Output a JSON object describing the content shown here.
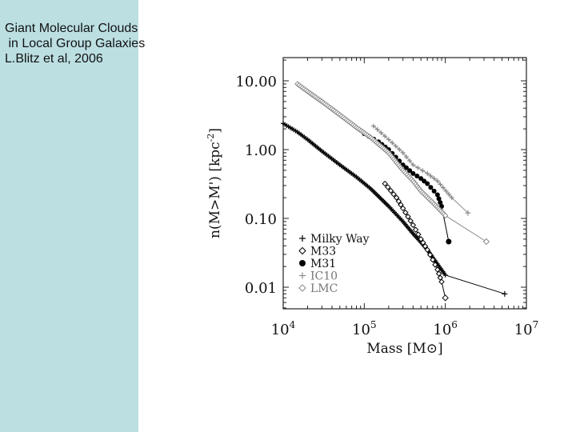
{
  "slide": {
    "title_line1": "Giant Molecular Clouds",
    "title_line2": " in Local Group Galaxies",
    "citation": "L.Blitz et al, 2006",
    "band_color": "#bcdfe2"
  },
  "chart_data": {
    "type": "line",
    "title": "",
    "xlabel": "Mass [M⊙]",
    "ylabel": "n(M>M') [kpc^-2]",
    "xscale": "log",
    "yscale": "log",
    "xlim": [
      10000,
      10000000
    ],
    "ylim": [
      0.005,
      15
    ],
    "x_ticks": [
      "10^4",
      "10^5",
      "10^6",
      "10^7"
    ],
    "y_ticks": [
      "10.00",
      "1.00",
      "0.10",
      "0.01"
    ],
    "grid": false,
    "legend_position": "lower-left inside",
    "series": [
      {
        "name": "Milky Way",
        "marker": "plus",
        "color": "#000000",
        "x": [
          10000,
          15000,
          20000,
          30000,
          50000,
          80000,
          120000,
          200000,
          300000,
          400000,
          500000,
          600000,
          700000,
          1000000,
          5400000
        ],
        "y": [
          2.4,
          1.8,
          1.4,
          0.95,
          0.6,
          0.4,
          0.27,
          0.15,
          0.09,
          0.06,
          0.045,
          0.035,
          0.027,
          0.015,
          0.008
        ]
      },
      {
        "name": "M33",
        "marker": "diamond-open",
        "color": "#000000",
        "x": [
          180000,
          250000,
          300000,
          400000,
          500000,
          600000,
          700000,
          800000,
          900000,
          1000000
        ],
        "y": [
          0.32,
          0.2,
          0.14,
          0.08,
          0.05,
          0.035,
          0.025,
          0.018,
          0.012,
          0.007
        ]
      },
      {
        "name": "M31",
        "marker": "circle-filled",
        "color": "#000000",
        "x": [
          100000,
          150000,
          200000,
          300000,
          400000,
          500000,
          600000,
          800000,
          900000,
          1100000
        ],
        "y": [
          1.7,
          1.3,
          1.0,
          0.6,
          0.45,
          0.38,
          0.32,
          0.22,
          0.15,
          0.046
        ]
      },
      {
        "name": "IC10",
        "marker": "plus",
        "color": "#8a8a8a",
        "x": [
          130000,
          200000,
          300000,
          400000,
          600000,
          800000,
          1200000,
          1900000
        ],
        "y": [
          2.2,
          1.4,
          0.9,
          0.6,
          0.45,
          0.35,
          0.2,
          0.12
        ]
      },
      {
        "name": "LMC",
        "marker": "diamond-open",
        "color": "#8a8a8a",
        "x": [
          15000,
          20000,
          30000,
          50000,
          80000,
          120000,
          200000,
          300000,
          400000,
          500000,
          700000,
          1000000,
          3200000
        ],
        "y": [
          9,
          7,
          5,
          3.2,
          2.1,
          1.5,
          0.9,
          0.5,
          0.35,
          0.25,
          0.17,
          0.11,
          0.046
        ]
      }
    ]
  }
}
